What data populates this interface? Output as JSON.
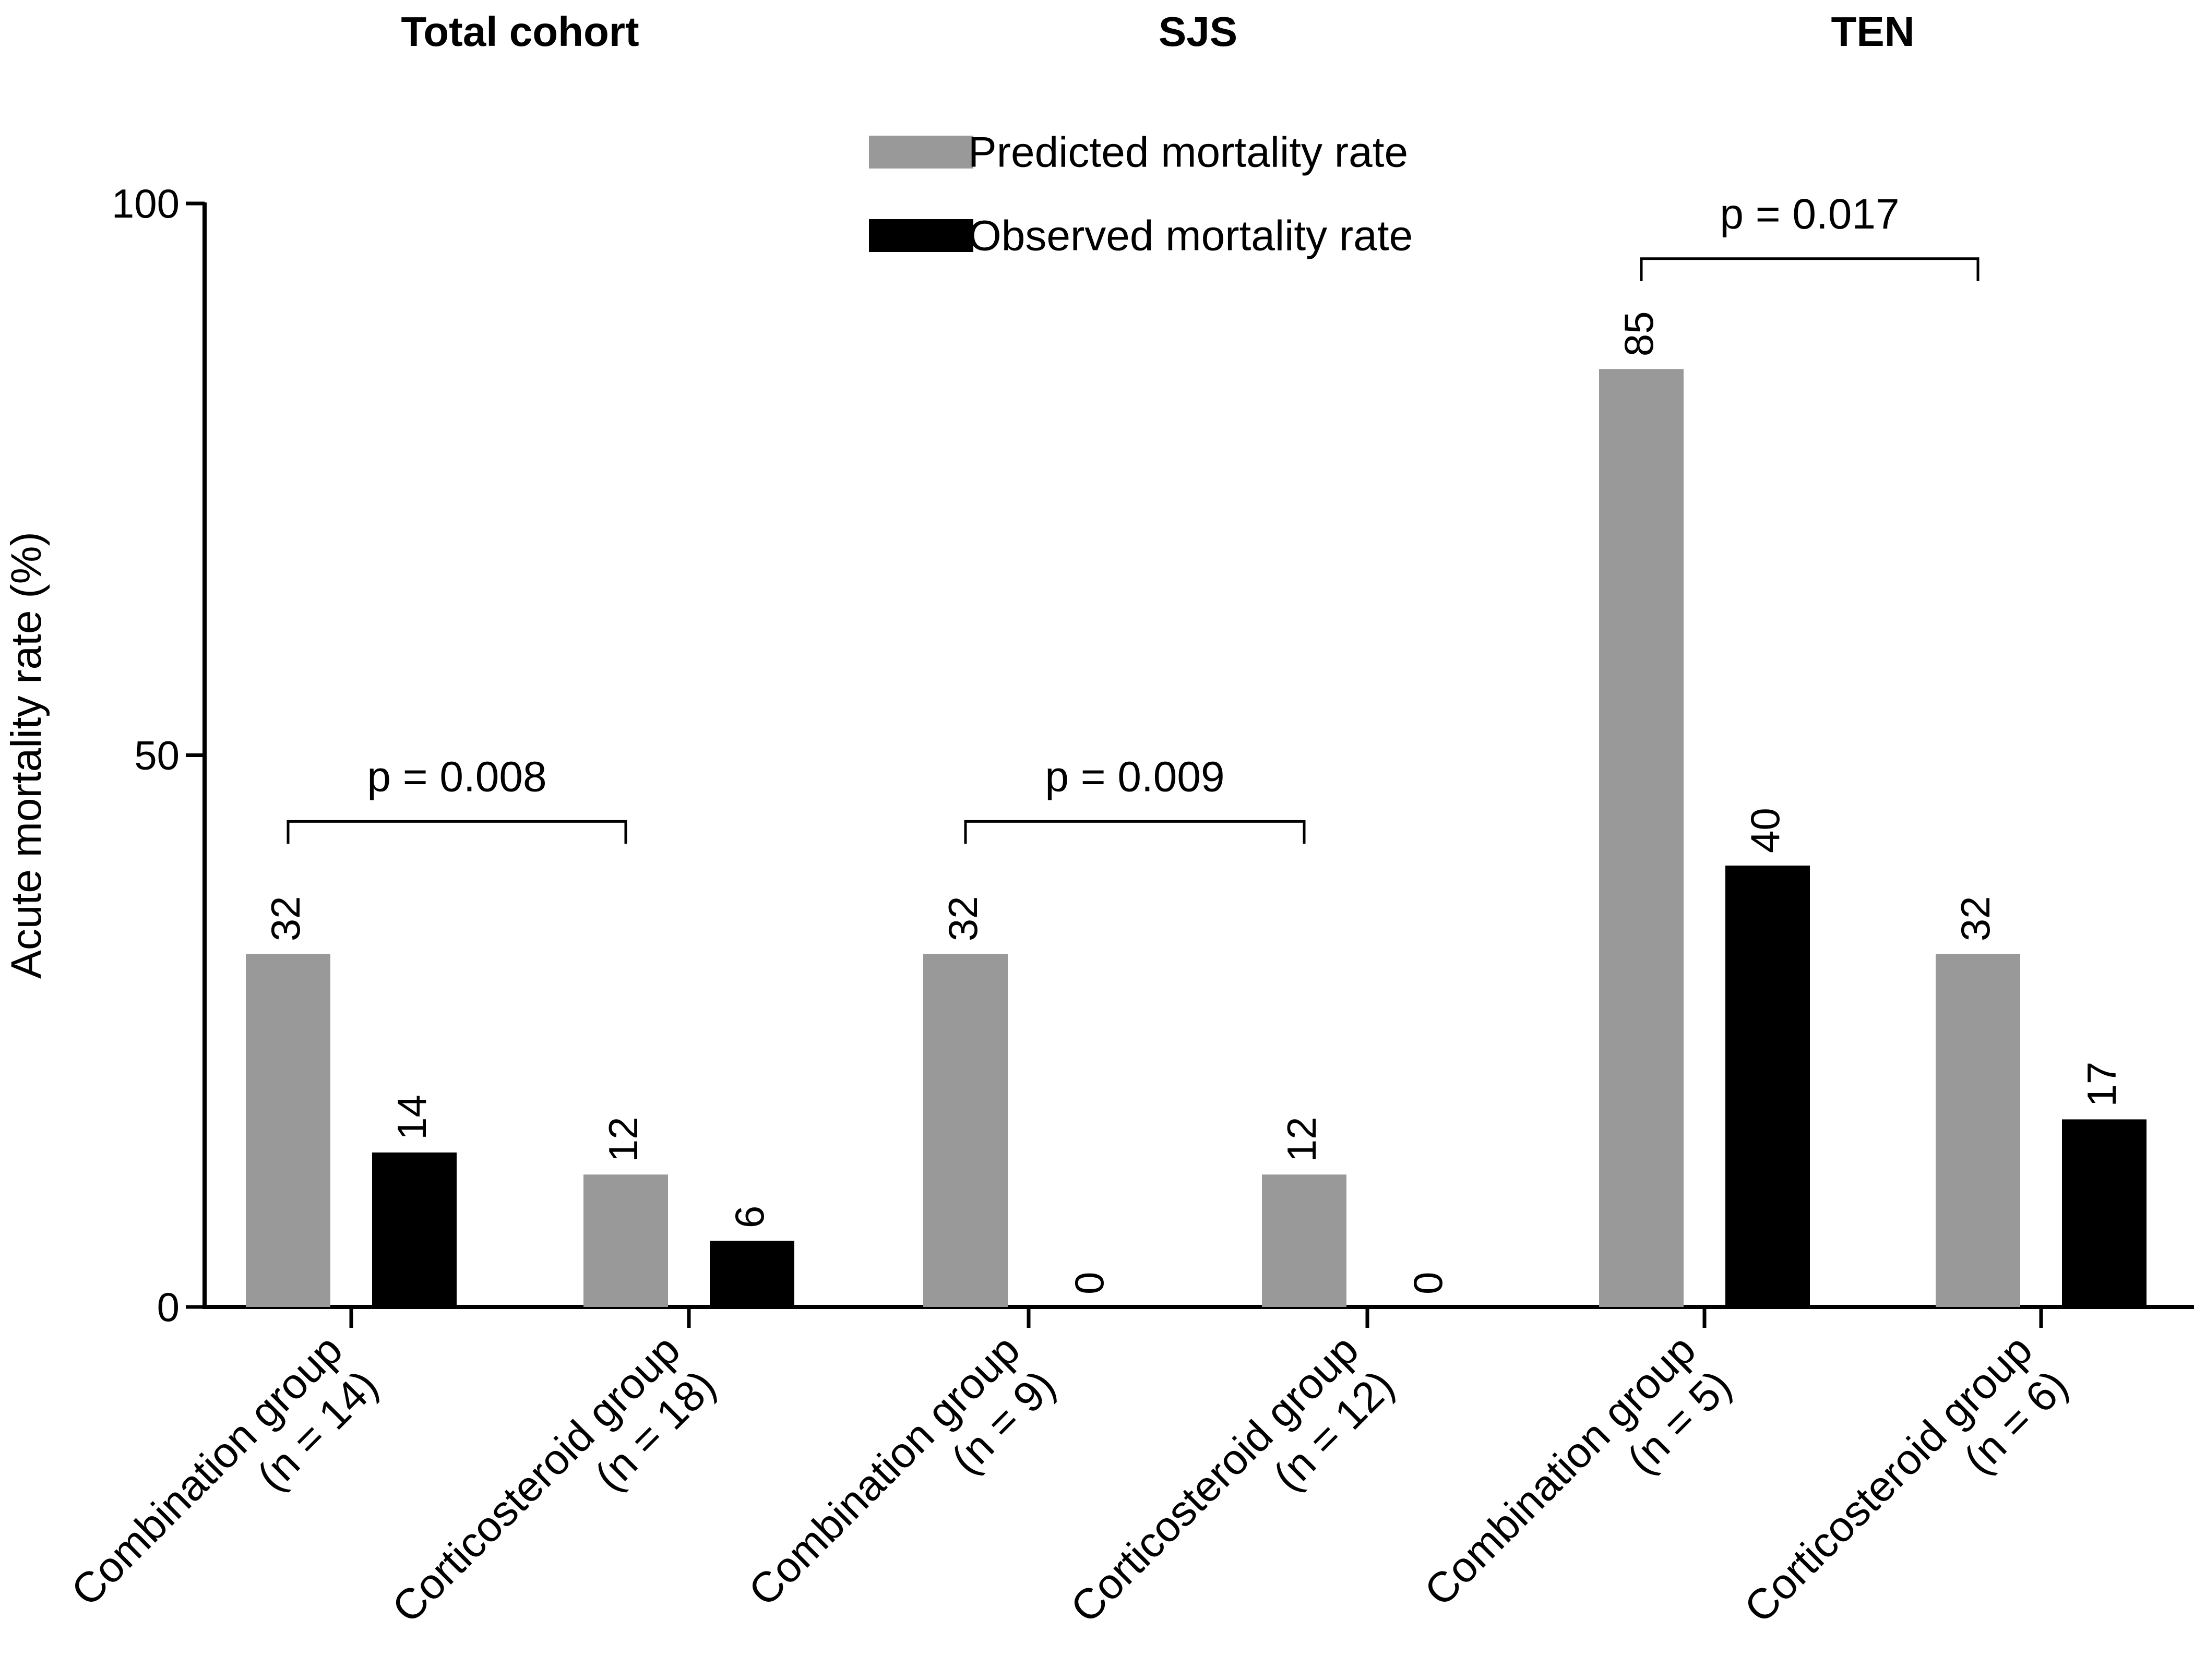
{
  "chart_data": {
    "type": "bar",
    "ylabel": "Acute mortality rate (%)",
    "ylim": [
      0,
      100
    ],
    "yticks": [
      0,
      50,
      100
    ],
    "grid": false,
    "legend_position": "top-center",
    "panel_titles": [
      "Total cohort",
      "SJS",
      "TEN"
    ],
    "categories": [
      [
        "Combination group",
        "(n = 14)"
      ],
      [
        "Corticosteroid group",
        "(n = 18)"
      ],
      [
        "Combination group",
        "(n = 9)"
      ],
      [
        "Corticosteroid group",
        "(n = 12)"
      ],
      [
        "Combination group",
        "(n = 5)"
      ],
      [
        "Corticosteroid group",
        "(n = 6)"
      ]
    ],
    "series": [
      {
        "name": "Predicted mortality rate",
        "color": "#999999",
        "values": [
          32,
          12,
          32,
          12,
          85,
          32
        ]
      },
      {
        "name": "Observed mortality rate",
        "color": "#000000",
        "values": [
          14,
          6,
          0,
          0,
          40,
          17
        ]
      }
    ],
    "annotations": [
      {
        "text": "p = 0.008",
        "from_category": 0,
        "to_category": 1,
        "y": 44
      },
      {
        "text": "p = 0.009",
        "from_category": 2,
        "to_category": 3,
        "y": 44
      },
      {
        "text": "p = 0.017",
        "from_category": 4,
        "to_category": 5,
        "y": 95
      }
    ]
  }
}
